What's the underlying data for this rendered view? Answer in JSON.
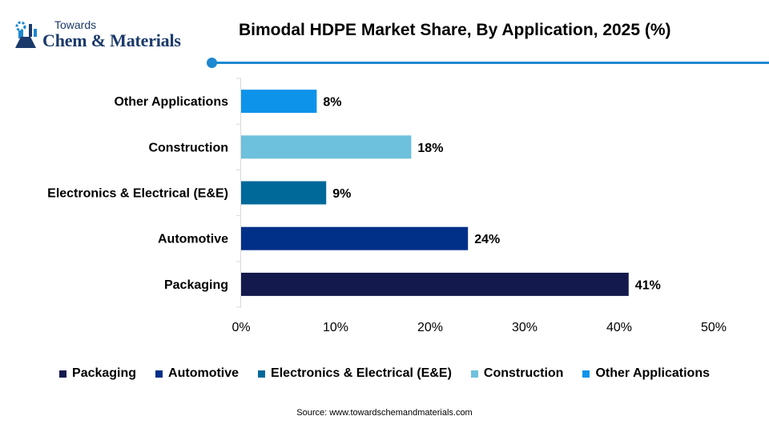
{
  "brand": {
    "top": "Towards",
    "main": "Chem & Materials",
    "icon": "flask-gear-icon",
    "color": "#1b3a6b"
  },
  "header": {
    "accent_color": "#1e88d0"
  },
  "chart_data": {
    "type": "bar",
    "orientation": "horizontal",
    "title": "Bimodal HDPE Market Share, By Application, 2025 (%)",
    "categories": [
      "Packaging",
      "Automotive",
      "Electronics & Electrical (E&E)",
      "Construction",
      "Other Applications"
    ],
    "values": [
      41,
      24,
      9,
      18,
      8
    ],
    "value_labels": [
      "41%",
      "24%",
      "9%",
      "18%",
      "8%"
    ],
    "colors": [
      "#14194d",
      "#013088",
      "#00699a",
      "#6ec1dc",
      "#0e93eb"
    ],
    "xlim": [
      0,
      50
    ],
    "x_ticks": [
      0,
      10,
      20,
      30,
      40,
      50
    ],
    "x_tick_labels": [
      "0%",
      "10%",
      "20%",
      "30%",
      "40%",
      "50%"
    ],
    "xlabel": "",
    "ylabel": "",
    "grid": false,
    "legend_position": "bottom"
  },
  "source": "Source: www.towardschemandmaterials.com"
}
